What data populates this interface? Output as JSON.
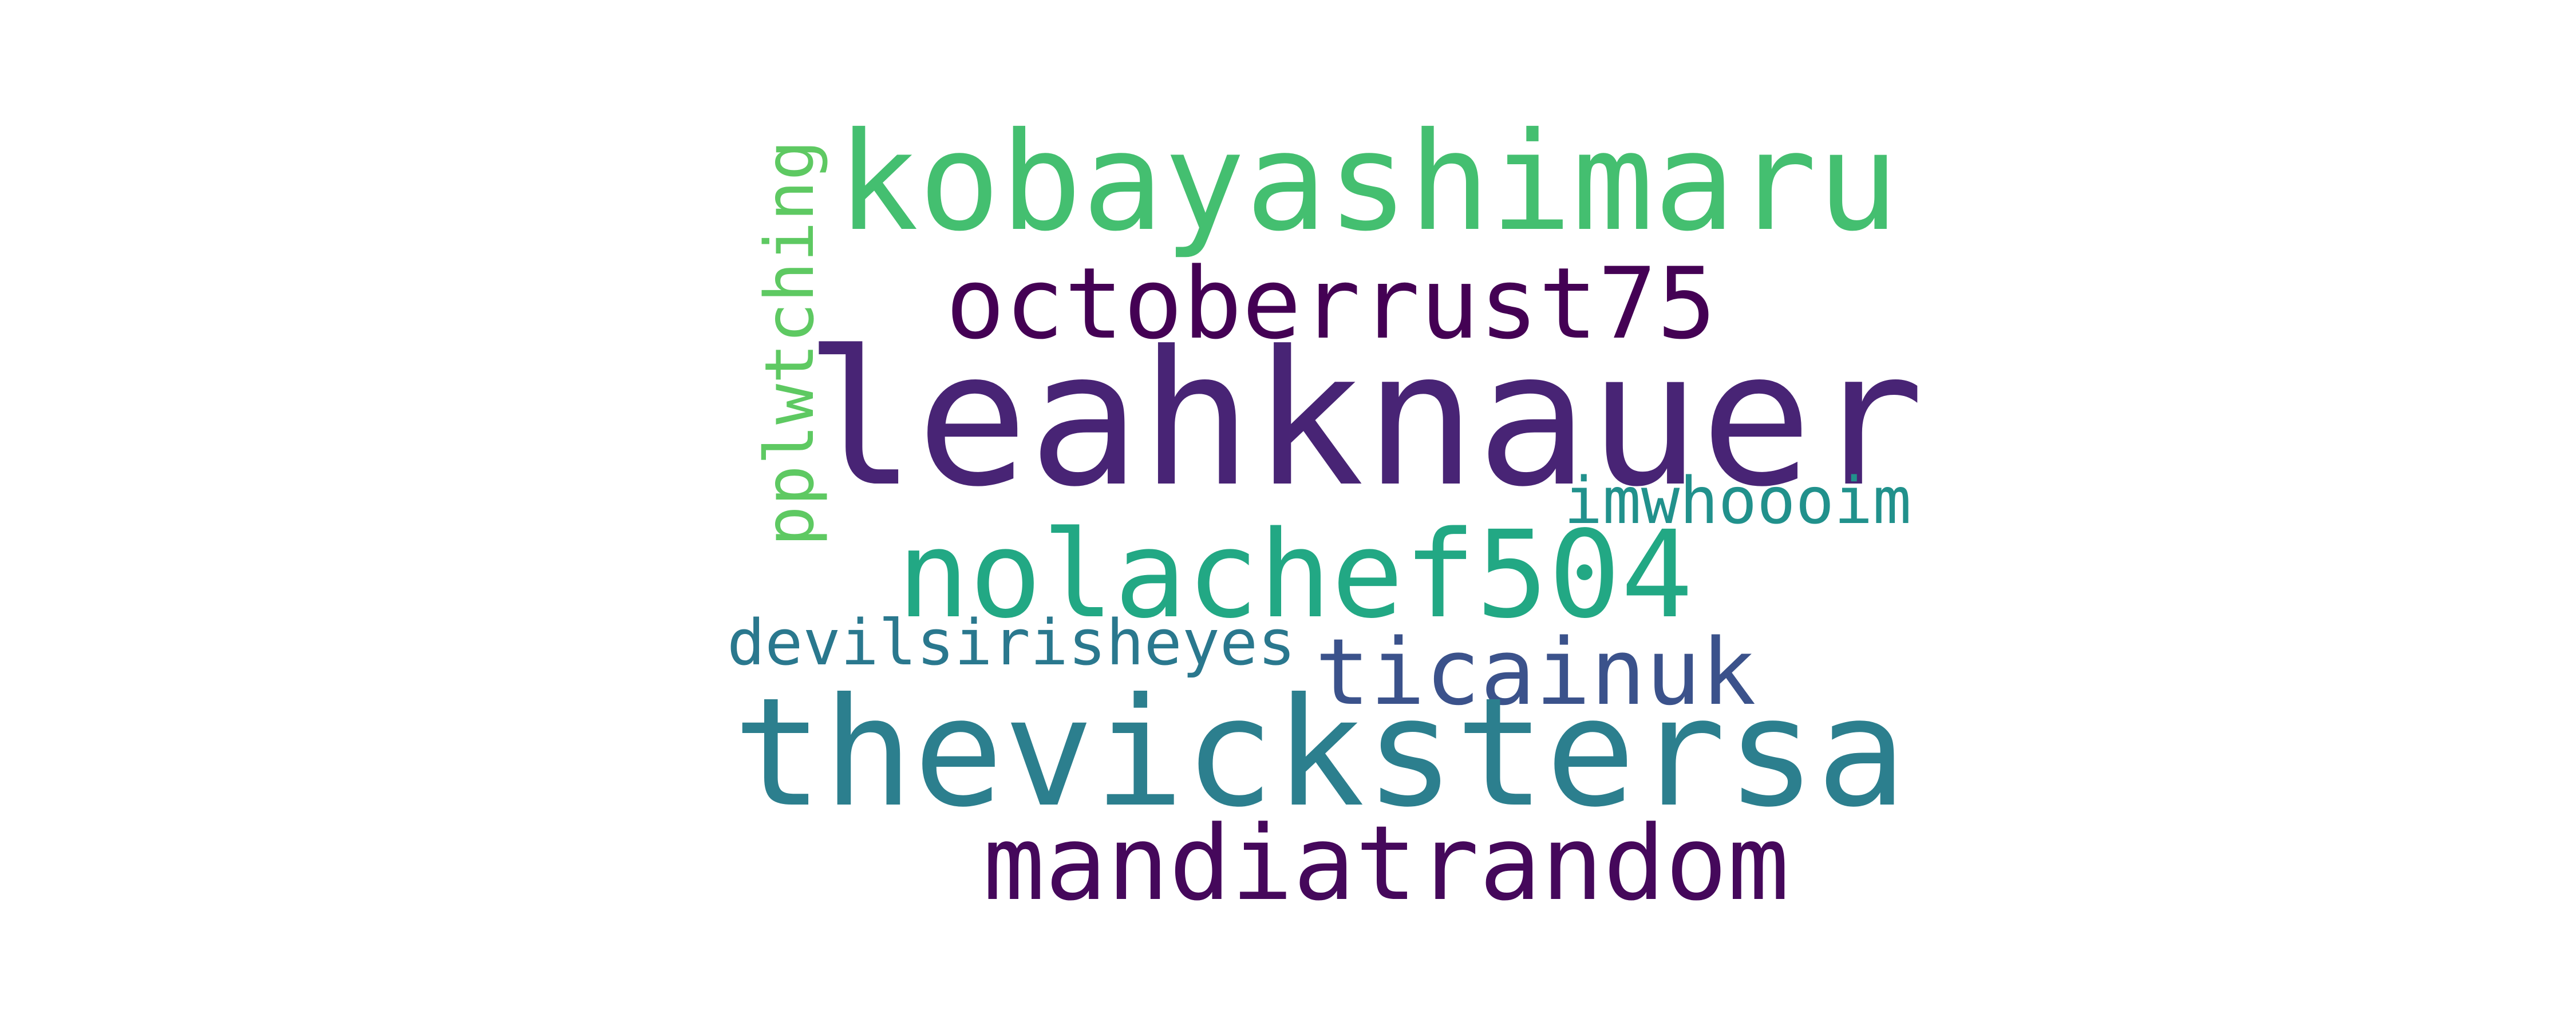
{
  "words": [
    {
      "key": "kobayashimaru",
      "text": "kobayashimaru",
      "color": "#44bf70"
    },
    {
      "key": "octoberrust75",
      "text": "octoberrust75",
      "color": "#440154"
    },
    {
      "key": "leahknauer",
      "text": "leahknauer",
      "color": "#482475"
    },
    {
      "key": "pplwtching",
      "text": "pplwtching",
      "color": "#5ec962"
    },
    {
      "key": "imwhoooim",
      "text": "imwhoooim",
      "color": "#21918c"
    },
    {
      "key": "nolachef504",
      "text": "nolachef504",
      "color": "#22a884"
    },
    {
      "key": "devilsirisheyes",
      "text": "devilsirisheyes",
      "color": "#2a788e"
    },
    {
      "key": "ticainuk",
      "text": "ticainuk",
      "color": "#3b528b"
    },
    {
      "key": "thevickstersa",
      "text": "thevickstersa",
      "color": "#2c7f8e"
    },
    {
      "key": "mandiatrandom",
      "text": "mandiatrandom",
      "color": "#45085b"
    }
  ],
  "background_color": "#ffffff"
}
